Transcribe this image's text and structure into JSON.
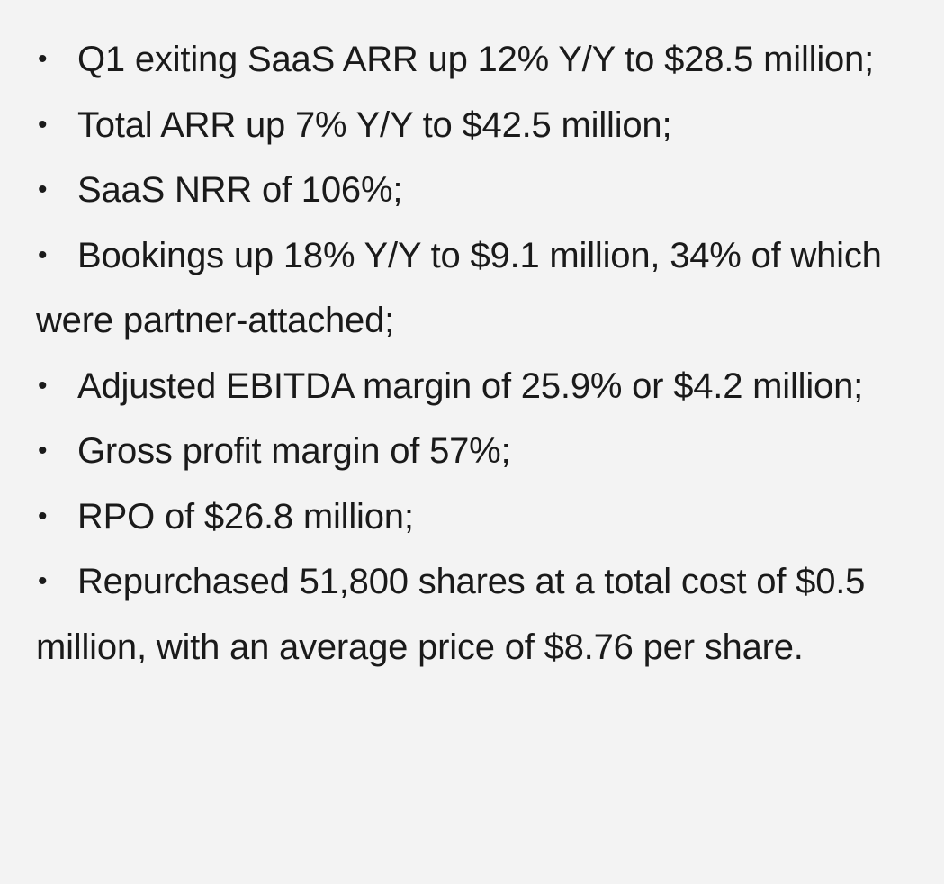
{
  "bullet_symbol": "•",
  "items": [
    "Q1 exiting SaaS ARR up 12% Y/Y to $28.5 million;",
    "Total ARR up 7% Y/Y to $42.5 million;",
    "SaaS NRR of 106%;",
    "Bookings up 18% Y/Y to $9.1 million, 34% of which were partner-attached;",
    "Adjusted EBITDA margin of 25.9% or $4.2 million;",
    "Gross profit margin of 57%;",
    "RPO of $26.8 million;",
    "Repurchased 51,800 shares at a total cost of $0.5 million, with an average price of $8.76 per share."
  ]
}
